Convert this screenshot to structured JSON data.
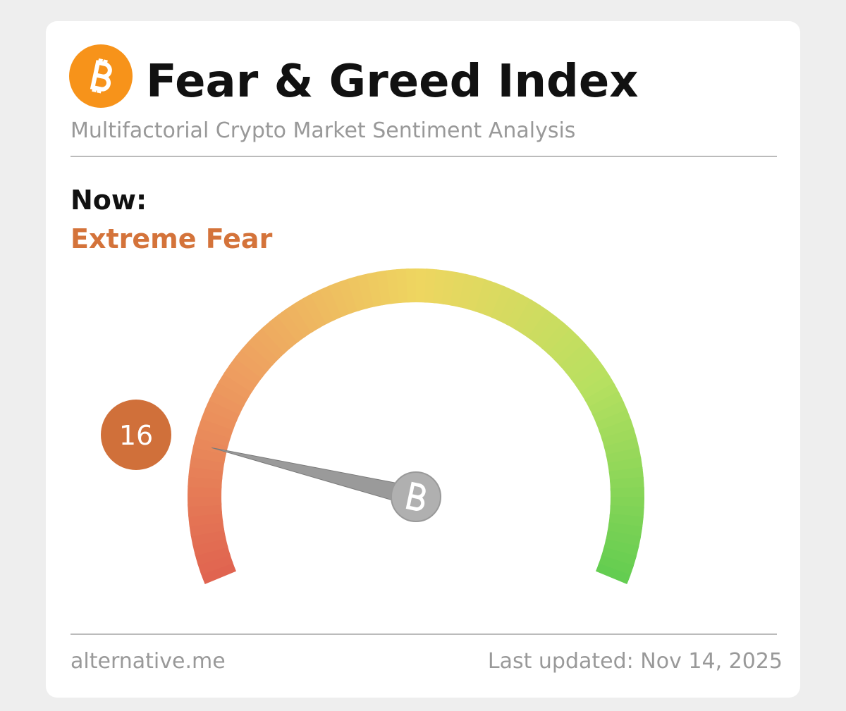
{
  "chart_data": {
    "type": "gauge",
    "title": "Fear & Greed Index",
    "subtitle": "Multifactorial Crypto Market Sentiment Analysis",
    "label": "Now:",
    "classification": "Extreme Fear",
    "value": 16,
    "ylim": [
      0,
      100
    ],
    "color": "#d0703a",
    "source": "alternative.me",
    "updated": "Last updated: Nov 14, 2025"
  }
}
